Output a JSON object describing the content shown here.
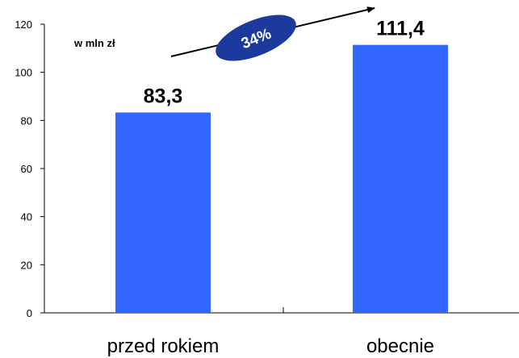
{
  "colors": {
    "bar": "#3366ff",
    "badge": "#1c3a9e",
    "axis": "#000000"
  },
  "unit_label": "w mln zł",
  "growth_badge": "34%",
  "chart_data": {
    "type": "bar",
    "categories": [
      "przed rokiem",
      "obecnie"
    ],
    "values": [
      83.3,
      111.4
    ],
    "data_labels": [
      "83,3",
      "111,4"
    ],
    "ylim": [
      0,
      120
    ],
    "yticks": [
      0,
      20,
      40,
      60,
      80,
      100,
      120
    ],
    "ytick_labels": [
      "0",
      "20",
      "40",
      "60",
      "80",
      "100",
      "120"
    ],
    "grid": false,
    "legend": "none",
    "xlabel": "",
    "ylabel": ""
  }
}
